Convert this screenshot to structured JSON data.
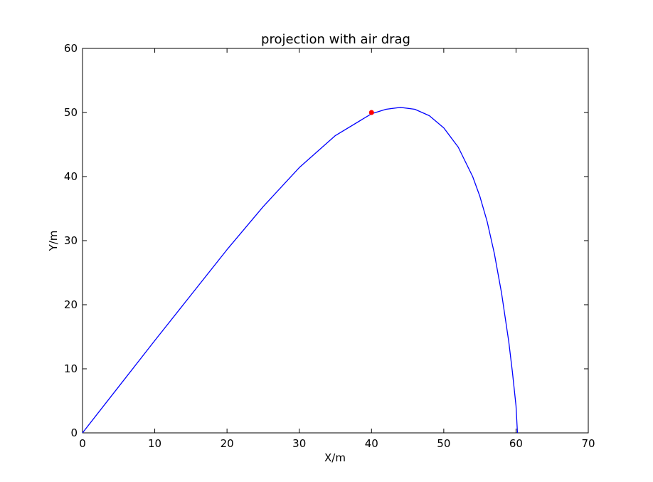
{
  "chart_data": {
    "type": "line",
    "title": "projection with air drag",
    "xlabel": "X/m",
    "ylabel": "Y/m",
    "xlim": [
      0,
      70
    ],
    "ylim": [
      0,
      60
    ],
    "xticks": [
      0,
      10,
      20,
      30,
      40,
      50,
      60,
      70
    ],
    "yticks": [
      0,
      10,
      20,
      30,
      40,
      50,
      60
    ],
    "grid": false,
    "series": [
      {
        "type": "line",
        "color": "#0000ff",
        "x": [
          0,
          5,
          10,
          15,
          20,
          25,
          30,
          35,
          40,
          42,
          44,
          46,
          48,
          50,
          52,
          54,
          55,
          56,
          57,
          58,
          59,
          59.5,
          60,
          60.2
        ],
        "y": [
          0,
          7.2,
          14.4,
          21.5,
          28.6,
          35.3,
          41.4,
          46.4,
          49.8,
          50.5,
          50.8,
          50.5,
          49.5,
          47.6,
          44.6,
          40.0,
          36.9,
          33.0,
          28.0,
          21.8,
          14.2,
          9.5,
          4.2,
          0
        ]
      },
      {
        "type": "scatter",
        "color": "#ff0000",
        "x": [
          40
        ],
        "y": [
          50
        ]
      }
    ]
  }
}
